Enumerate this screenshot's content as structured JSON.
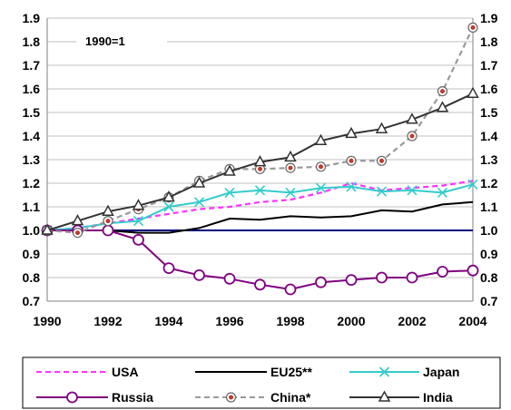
{
  "chart_data": {
    "type": "line",
    "title": "",
    "note": "1990=1",
    "x": [
      1990,
      1991,
      1992,
      1993,
      1994,
      1995,
      1996,
      1997,
      1998,
      1999,
      2000,
      2001,
      2002,
      2003,
      2004
    ],
    "x_ticks": [
      "1990",
      "1992",
      "1994",
      "1996",
      "1998",
      "2000",
      "2002",
      "2004"
    ],
    "y_ticks": [
      "0.7",
      "0.8",
      "0.9",
      "1.0",
      "1.1",
      "1.2",
      "1.3",
      "1.4",
      "1.5",
      "1.6",
      "1.7",
      "1.8",
      "1.9"
    ],
    "ylim": [
      0.7,
      1.9
    ],
    "xlim": [
      1990,
      2004
    ],
    "grid": "horizontal",
    "secondary_y_axis": true,
    "legend_position": "bottom",
    "reference_line": 1.0,
    "series": [
      {
        "name": "USA",
        "color": "#ff33ff",
        "dash": "dash",
        "marker": "none",
        "values": [
          1.0,
          1.01,
          1.03,
          1.05,
          1.07,
          1.09,
          1.1,
          1.12,
          1.13,
          1.16,
          1.2,
          1.17,
          1.18,
          1.19,
          1.21
        ]
      },
      {
        "name": "EU25**",
        "color": "#000000",
        "dash": "solid",
        "marker": "none",
        "values": [
          1.0,
          1.0,
          1.0,
          0.99,
          0.99,
          1.01,
          1.05,
          1.045,
          1.06,
          1.055,
          1.06,
          1.085,
          1.08,
          1.11,
          1.12
        ]
      },
      {
        "name": "Japan",
        "color": "#33cccc",
        "dash": "solid",
        "marker": "x",
        "values": [
          1.0,
          1.01,
          1.03,
          1.04,
          1.1,
          1.12,
          1.16,
          1.17,
          1.16,
          1.18,
          1.185,
          1.165,
          1.17,
          1.16,
          1.195
        ]
      },
      {
        "name": "Russia",
        "color": "#800080",
        "dash": "solid",
        "marker": "circle",
        "values": [
          1.0,
          1.0,
          1.0,
          0.96,
          0.84,
          0.81,
          0.795,
          0.77,
          0.75,
          0.78,
          0.79,
          0.8,
          0.8,
          0.825,
          0.83
        ]
      },
      {
        "name": "China*",
        "color": "#999999",
        "dash": "dash",
        "marker": "dot-circle",
        "values": [
          1.0,
          0.99,
          1.04,
          1.09,
          1.14,
          1.21,
          1.26,
          1.26,
          1.265,
          1.27,
          1.295,
          1.295,
          1.4,
          1.59,
          1.86
        ]
      },
      {
        "name": "India",
        "color": "#333333",
        "dash": "solid",
        "marker": "triangle",
        "values": [
          1.0,
          1.04,
          1.08,
          1.105,
          1.14,
          1.2,
          1.25,
          1.29,
          1.31,
          1.38,
          1.41,
          1.43,
          1.47,
          1.52,
          1.58
        ]
      }
    ],
    "colors": {
      "reference": "#000080",
      "grid": "#c0c0c0"
    }
  }
}
